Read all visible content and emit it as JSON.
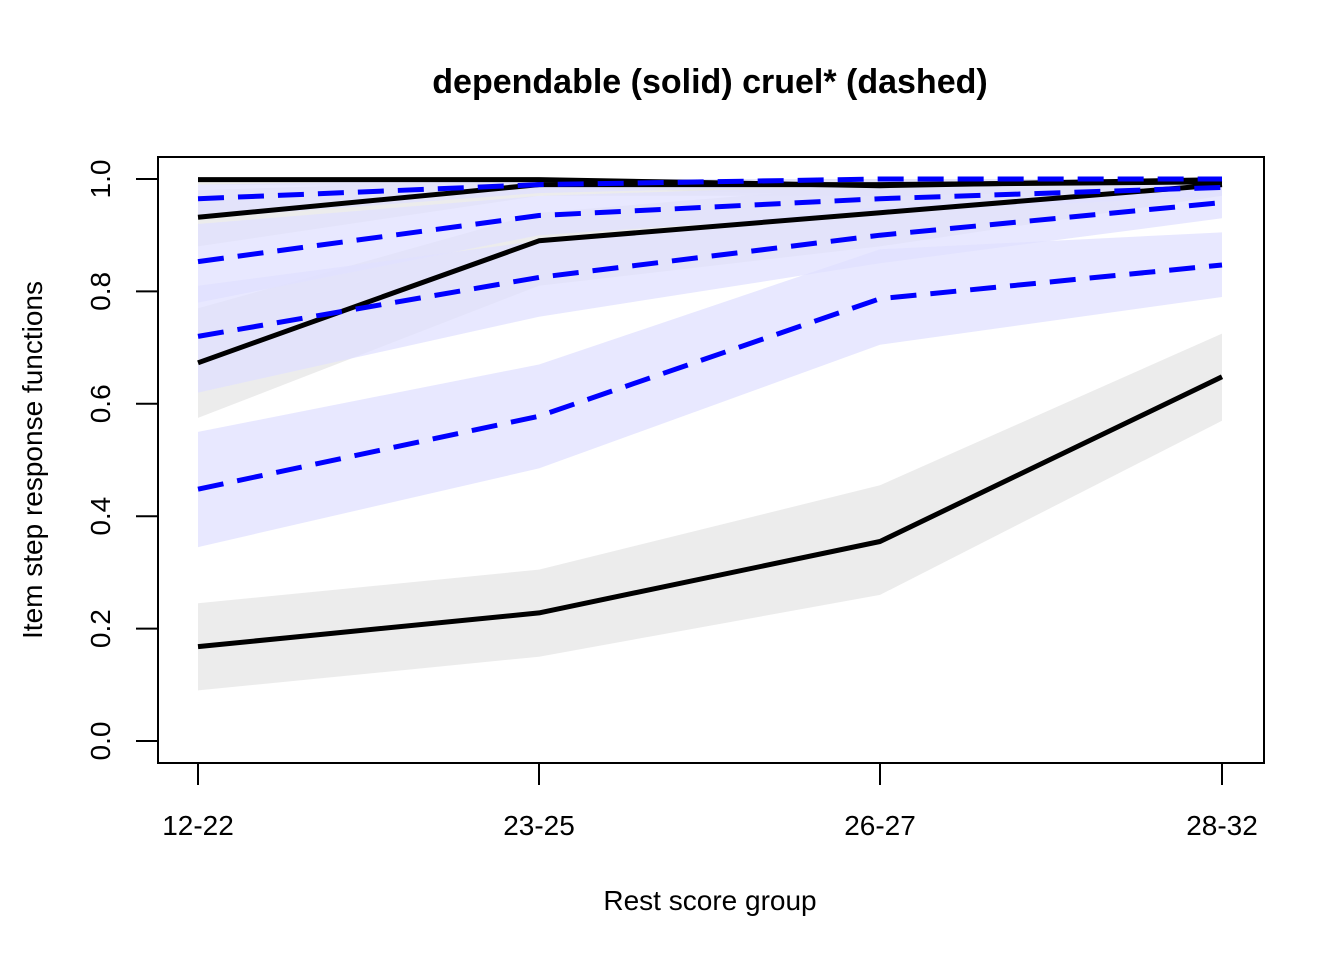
{
  "chart_data": {
    "type": "line",
    "title": "dependable (solid) cruel* (dashed)",
    "xlabel": "Rest score group",
    "ylabel": "Item step response functions",
    "categories": [
      "12-22",
      "23-25",
      "26-27",
      "28-32"
    ],
    "ylim": [
      0,
      1
    ],
    "yticks": [
      "0.0",
      "0.2",
      "0.4",
      "0.6",
      "0.8",
      "1.0"
    ],
    "grid": false,
    "legend": "none",
    "colors": {
      "solid_line": "#000000",
      "dashed_line": "#0000ff",
      "solid_band": "#e6e6e6",
      "dashed_band": "#e0e0ff"
    },
    "series": [
      {
        "style": "solid",
        "values": [
          0.999,
          0.999,
          0.988,
          0.999
        ],
        "lower": [
          0.99,
          0.985,
          0.97,
          0.985
        ],
        "upper": [
          1.0,
          1.0,
          1.0,
          1.0
        ]
      },
      {
        "style": "solid",
        "values": [
          0.932,
          0.99,
          0.99,
          0.995
        ],
        "lower": [
          0.88,
          0.97,
          0.97,
          0.98
        ],
        "upper": [
          0.98,
          1.0,
          1.0,
          1.0
        ]
      },
      {
        "style": "solid",
        "values": [
          0.673,
          0.89,
          0.94,
          0.99
        ],
        "lower": [
          0.575,
          0.81,
          0.88,
          0.97
        ],
        "upper": [
          0.77,
          0.94,
          0.99,
          1.0
        ]
      },
      {
        "style": "solid",
        "values": [
          0.168,
          0.228,
          0.355,
          0.648
        ],
        "lower": [
          0.09,
          0.15,
          0.26,
          0.57
        ],
        "upper": [
          0.245,
          0.305,
          0.455,
          0.725
        ]
      },
      {
        "style": "dashed",
        "values": [
          0.965,
          0.99,
          1.0,
          1.0
        ],
        "lower": [
          0.93,
          0.975,
          0.99,
          0.99
        ],
        "upper": [
          0.99,
          1.0,
          1.0,
          1.0
        ]
      },
      {
        "style": "dashed",
        "values": [
          0.853,
          0.935,
          0.965,
          0.985
        ],
        "lower": [
          0.78,
          0.9,
          0.94,
          0.97
        ],
        "upper": [
          0.92,
          0.97,
          0.99,
          1.0
        ]
      },
      {
        "style": "dashed",
        "values": [
          0.72,
          0.825,
          0.9,
          0.958
        ],
        "lower": [
          0.62,
          0.755,
          0.85,
          0.93
        ],
        "upper": [
          0.81,
          0.89,
          0.95,
          0.985
        ]
      },
      {
        "style": "dashed",
        "values": [
          0.448,
          0.578,
          0.787,
          0.847
        ],
        "lower": [
          0.345,
          0.485,
          0.705,
          0.79
        ],
        "upper": [
          0.55,
          0.67,
          0.875,
          0.905
        ]
      }
    ]
  }
}
